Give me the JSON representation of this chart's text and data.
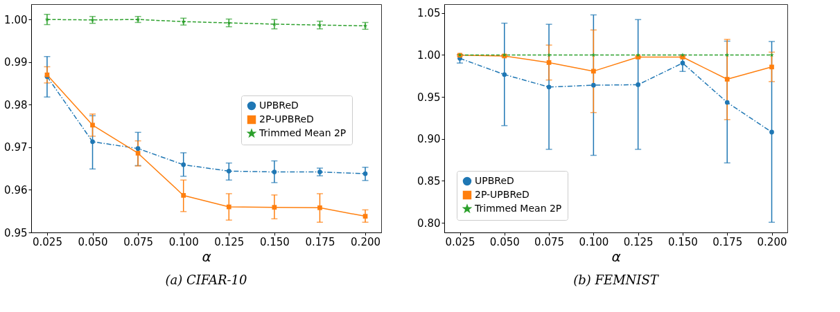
{
  "chart_data": [
    {
      "type": "line",
      "title": "(a) CIFAR-10",
      "xlabel": "α",
      "x": [
        0.025,
        0.05,
        0.075,
        0.1,
        0.125,
        0.15,
        0.175,
        0.2
      ],
      "xlim": [
        0.01625,
        0.20875
      ],
      "xticks": [
        0.025,
        {
          "value": 0.05,
          "label": "0.050"
        },
        0.075,
        {
          "value": 0.1,
          "label": "0.100"
        },
        0.125,
        {
          "value": 0.15,
          "label": "0.150"
        },
        0.175,
        {
          "value": 0.2,
          "label": "0.200"
        }
      ],
      "ylim": [
        0.95,
        1.0036
      ],
      "yticks": [
        0.95,
        0.96,
        0.97,
        0.98,
        0.99,
        {
          "value": 1,
          "label": "1.00"
        }
      ],
      "grid": false,
      "legend": "right",
      "series": [
        {
          "name": "UPBReD",
          "color": "#1f77b4",
          "marker": "circle",
          "line_style": "dashdot",
          "values": [
            0.9866,
            0.9713,
            0.9697,
            0.9659,
            0.9644,
            0.9642,
            0.9642,
            0.9638
          ],
          "errors": [
            [
              0.9818,
              0.9913
            ],
            [
              0.9649,
              0.9774
            ],
            [
              0.9657,
              0.9735
            ],
            [
              0.9632,
              0.9687
            ],
            [
              0.9623,
              0.9663
            ],
            [
              0.9617,
              0.9668
            ],
            [
              0.9633,
              0.9651
            ],
            [
              0.9622,
              0.9653
            ]
          ]
        },
        {
          "name": "2P-UPBReD",
          "color": "#ff7f0e",
          "marker": "square",
          "line_style": "solid",
          "values": [
            0.987,
            0.9752,
            0.9686,
            0.9587,
            0.956,
            0.9559,
            0.9558,
            0.9538
          ],
          "errors": [
            [
              0.9851,
              0.9889
            ],
            [
              0.9726,
              0.9778
            ],
            [
              0.9656,
              0.9715
            ],
            [
              0.9549,
              0.9623
            ],
            [
              0.9529,
              0.9591
            ],
            [
              0.9532,
              0.9588
            ],
            [
              0.9524,
              0.9591
            ],
            [
              0.9524,
              0.9553
            ]
          ]
        },
        {
          "name": "Trimmed Mean 2P",
          "color": "#2ca02c",
          "marker": "star",
          "line_style": "dashed",
          "values": [
            1.0,
            0.9999,
            1.0,
            0.9995,
            0.9992,
            0.9989,
            0.9987,
            0.9985
          ],
          "errors": [
            0.0012,
            0.0008,
            0.0007,
            0.0008,
            0.0009,
            0.0011,
            0.0009,
            0.0008
          ]
        }
      ]
    },
    {
      "type": "line",
      "title": "(b) FEMNIST",
      "xlabel": "α",
      "x": [
        0.025,
        0.05,
        0.075,
        0.1,
        0.125,
        0.15,
        0.175,
        0.2
      ],
      "xlim": [
        0.01625,
        0.20875
      ],
      "xticks": [
        0.025,
        {
          "value": 0.05,
          "label": "0.050"
        },
        0.075,
        {
          "value": 0.1,
          "label": "0.100"
        },
        0.125,
        {
          "value": 0.15,
          "label": "0.150"
        },
        0.175,
        {
          "value": 0.2,
          "label": "0.200"
        }
      ],
      "ylim": [
        0.7885,
        1.0606
      ],
      "yticks": [
        {
          "value": 0.8,
          "label": "0.80"
        },
        0.85,
        {
          "value": 0.9,
          "label": "0.90"
        },
        0.95,
        {
          "value": 1,
          "label": "1.00"
        },
        1.05
      ],
      "grid": false,
      "legend": "bottom left",
      "series": [
        {
          "name": "UPBReD",
          "color": "#1f77b4",
          "marker": "circle",
          "line_style": "dashdot",
          "values": [
            0.996,
            0.9767,
            0.9618,
            0.964,
            0.9646,
            0.9904,
            0.9435,
            0.9081
          ],
          "errors": [
            [
              0.9904,
              1.0005
            ],
            [
              0.9158,
              1.0379
            ],
            [
              0.8876,
              1.0366
            ],
            [
              0.8804,
              1.0478
            ],
            [
              0.8876,
              1.0422
            ],
            [
              0.9804,
              1.0
            ],
            [
              0.8714,
              1.0165
            ],
            [
              0.8006,
              1.0161
            ]
          ]
        },
        {
          "name": "2P-UPBReD",
          "color": "#ff7f0e",
          "marker": "square",
          "line_style": "solid",
          "values": [
            0.9997,
            0.9988,
            0.991,
            0.9807,
            0.9975,
            0.9975,
            0.9711,
            0.9857
          ],
          "errors": [
            0.001,
            0.001,
            [
              0.9702,
              1.0118
            ],
            [
              0.9314,
              1.0298
            ],
            0.001,
            0.001,
            [
              0.923,
              1.0186
            ],
            [
              0.9683,
              1.0034
            ]
          ]
        },
        {
          "name": "Trimmed Mean 2P",
          "color": "#2ca02c",
          "marker": "star",
          "line_style": "dashed",
          "values": [
            1.0,
            1.0,
            1.0,
            1.0,
            1.0,
            1.0,
            1.0,
            1.0
          ]
        }
      ]
    }
  ]
}
